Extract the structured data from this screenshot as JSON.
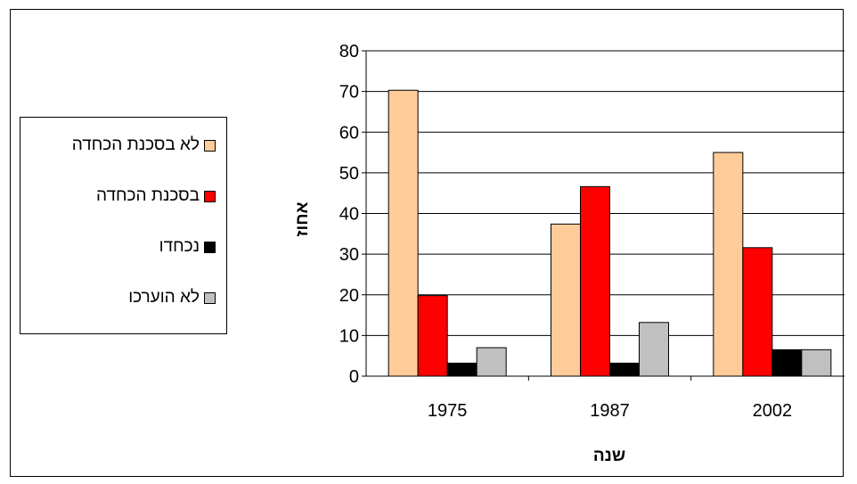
{
  "chart_data": {
    "type": "bar",
    "title": "",
    "xlabel": "שנה",
    "ylabel": "אחוז",
    "categories": [
      "1975",
      "1987",
      "2002"
    ],
    "ylim": [
      0,
      80
    ],
    "yticks": [
      0,
      10,
      20,
      30,
      40,
      50,
      60,
      70,
      80
    ],
    "grid": true,
    "legend_position": "left",
    "series": [
      {
        "name": "לא בסכנת הכחדה",
        "color": "#FFCC99",
        "values": [
          70.3,
          37.4,
          55
        ]
      },
      {
        "name": "בסכנת הכחדה",
        "color": "#FF0000",
        "values": [
          19.8,
          46.6,
          31.6
        ]
      },
      {
        "name": "נכחדו",
        "color": "#000000",
        "values": [
          3.2,
          3.2,
          6.5
        ]
      },
      {
        "name": "לא הוערכו",
        "color": "#C0C0C0",
        "values": [
          7,
          13.2,
          6.5
        ]
      }
    ]
  }
}
